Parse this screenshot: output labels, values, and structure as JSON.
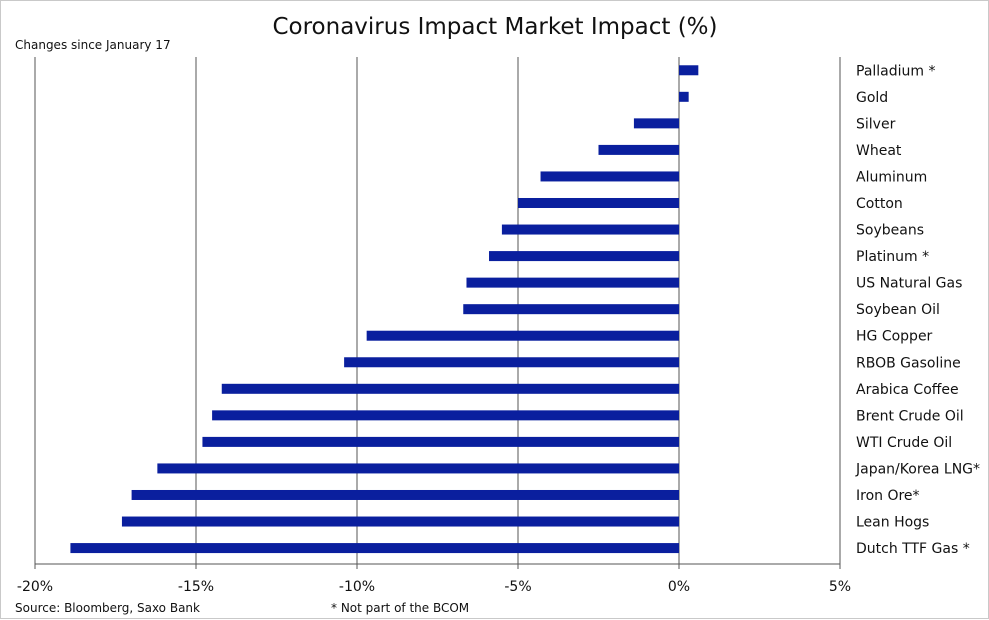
{
  "chart_data": {
    "type": "bar",
    "orientation": "horizontal",
    "title": "Coronavirus Impact Market Impact (%)",
    "subtitle": "Changes since January 17",
    "source": "Source: Bloomberg, Saxo Bank",
    "footnote": "* Not part of the BCOM",
    "xlim": [
      -20,
      5
    ],
    "xticks": [
      "-20%",
      "-15%",
      "-10%",
      "-5%",
      "0%",
      "5%"
    ],
    "xtick_values": [
      -20,
      -15,
      -10,
      -5,
      0,
      5
    ],
    "grid": "vertical",
    "bar_color": "#0a1f9e",
    "categories": [
      "Palladium *",
      "Gold",
      "Silver",
      "Wheat",
      "Aluminum",
      "Cotton",
      "Soybeans",
      "Platinum *",
      "US Natural Gas",
      "Soybean Oil",
      "HG Copper",
      "RBOB Gasoline",
      "Arabica Coffee",
      "Brent Crude Oil",
      "WTI Crude Oil",
      "Japan/Korea LNG*",
      "Iron Ore*",
      "Lean Hogs",
      "Dutch TTF Gas *"
    ],
    "values": [
      0.6,
      0.3,
      -1.4,
      -2.5,
      -4.3,
      -5.0,
      -5.5,
      -5.9,
      -6.6,
      -6.7,
      -9.7,
      -10.4,
      -14.2,
      -14.5,
      -14.8,
      -16.2,
      -17.0,
      -17.3,
      -18.9
    ]
  }
}
